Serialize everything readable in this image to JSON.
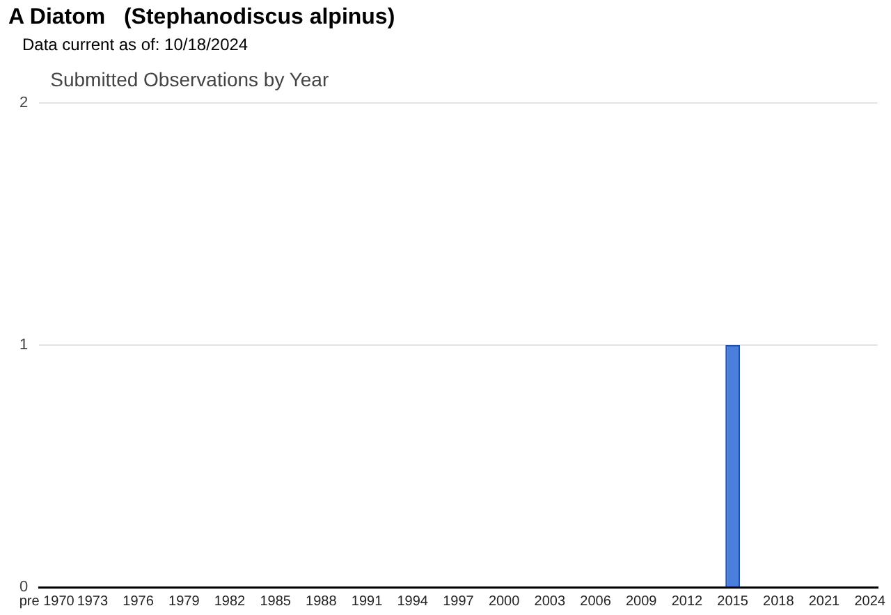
{
  "chart_data": {
    "type": "bar",
    "title": "A Diatom   (Stephanodiscus alpinus)",
    "subtitle": "Data current as of: 10/18/2024",
    "annotations": [
      "Submitted Observations by Year"
    ],
    "categories": [
      "pre 1970",
      null,
      null,
      "1973",
      null,
      null,
      "1976",
      null,
      null,
      "1979",
      null,
      null,
      "1982",
      null,
      null,
      "1985",
      null,
      null,
      "1988",
      null,
      null,
      "1991",
      null,
      null,
      "1994",
      null,
      null,
      "1997",
      null,
      null,
      "2000",
      null,
      null,
      "2003",
      null,
      null,
      "2006",
      null,
      null,
      "2009",
      null,
      null,
      "2012",
      null,
      null,
      "2015",
      null,
      null,
      "2018",
      null,
      null,
      "2021",
      null,
      null,
      "2024"
    ],
    "values": [
      0,
      0,
      0,
      0,
      0,
      0,
      0,
      0,
      0,
      0,
      0,
      0,
      0,
      0,
      0,
      0,
      0,
      0,
      0,
      0,
      0,
      0,
      0,
      0,
      0,
      0,
      0,
      0,
      0,
      0,
      0,
      0,
      0,
      0,
      0,
      0,
      0,
      0,
      0,
      0,
      0,
      0,
      0,
      0,
      0,
      1,
      0,
      0,
      0,
      0,
      0,
      0,
      0,
      0,
      0
    ],
    "color": "#4a80dc",
    "ylim": [
      0,
      2
    ],
    "yticks": [
      0,
      1,
      2
    ],
    "grid": "y",
    "legend": false
  }
}
